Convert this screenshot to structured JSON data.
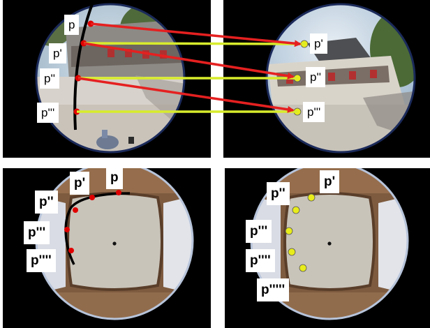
{
  "panels": {
    "top_left": {
      "labels": [
        "p",
        "p'",
        "p''",
        "p'''"
      ]
    },
    "top_right": {
      "labels": [
        "p'",
        "p''",
        "p'''"
      ]
    },
    "bottom_left": {
      "labels": [
        "p",
        "p'",
        "p''",
        "p'''",
        "p''''"
      ]
    },
    "bottom_right": {
      "labels": [
        "p'",
        "p''",
        "p'''",
        "p''''",
        "p'''''"
      ]
    }
  },
  "colors": {
    "curve": "#000000",
    "red_point": "#e00000",
    "yellow_point": "#e8ec1a",
    "red_arrow": "#e52020",
    "yellow_line": "#d8ec2c"
  }
}
